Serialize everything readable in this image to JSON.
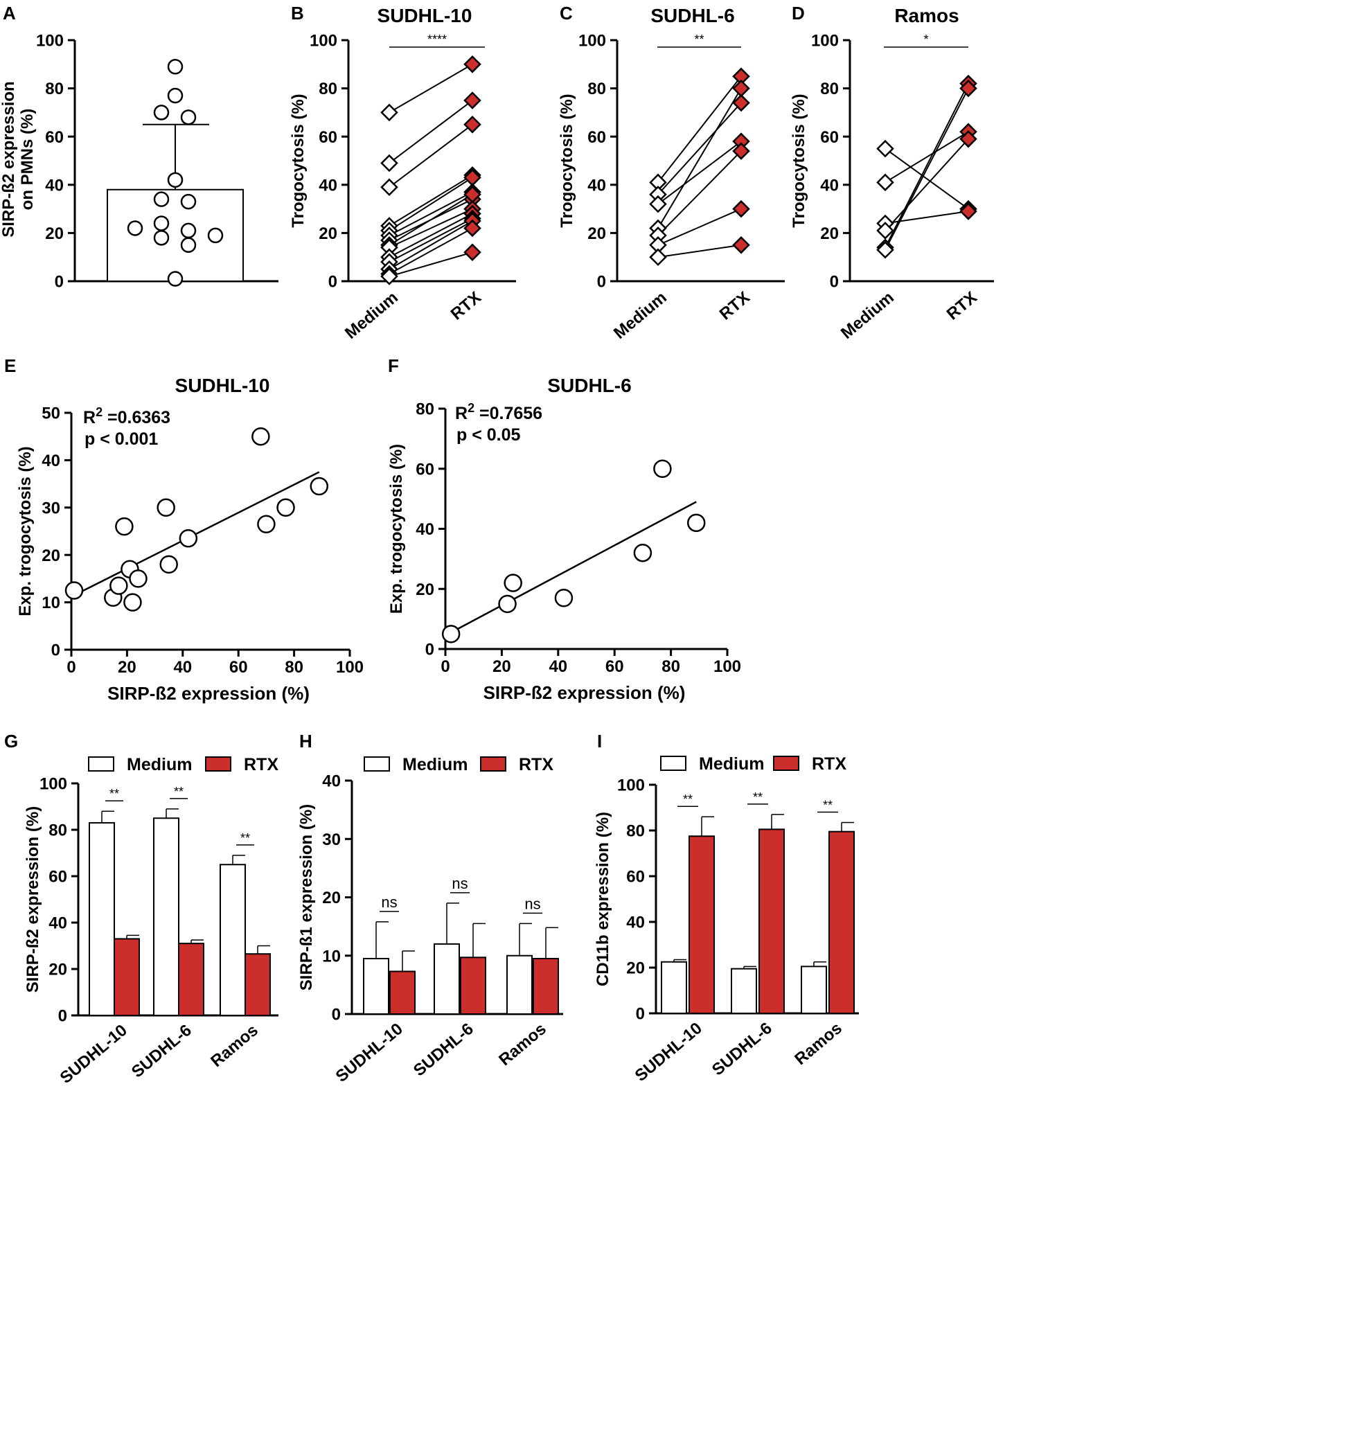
{
  "colors": {
    "rtx": "#cc2e2b",
    "medium": "#ffffff",
    "axis": "#000000"
  },
  "chart_data": [
    {
      "id": "A",
      "panel_label": "A",
      "type": "bar",
      "title": "",
      "ylabel": "SIRP-ß2 expression on  PMNs (%)",
      "ylabel_lines": [
        "SIRP-ß2 expression",
        "on  PMNs (%)"
      ],
      "ylim": [
        0,
        100
      ],
      "yticks": [
        0,
        20,
        40,
        60,
        80,
        100
      ],
      "bar_value": 38,
      "error_upper": 65,
      "points": [
        89,
        77,
        70,
        68,
        42,
        34,
        33,
        24,
        22,
        21,
        19,
        18,
        15,
        1
      ]
    },
    {
      "id": "B",
      "panel_label": "B",
      "type": "paired",
      "title": "SUDHL-10",
      "ylabel": "Trogocytosis (%)",
      "ylim": [
        0,
        100
      ],
      "yticks": [
        0,
        20,
        40,
        60,
        80,
        100
      ],
      "categories": [
        "Medium",
        "RTX"
      ],
      "significance": "****",
      "pairs": [
        [
          70,
          90
        ],
        [
          49,
          75
        ],
        [
          39,
          65
        ],
        [
          23,
          44
        ],
        [
          21,
          43
        ],
        [
          19,
          37
        ],
        [
          17,
          34
        ],
        [
          15,
          36
        ],
        [
          14,
          30
        ],
        [
          10,
          28
        ],
        [
          8,
          26
        ],
        [
          5,
          25
        ],
        [
          3,
          22
        ],
        [
          2,
          12
        ]
      ]
    },
    {
      "id": "C",
      "panel_label": "C",
      "type": "paired",
      "title": "SUDHL-6",
      "ylabel": "Trogocytosis (%)",
      "ylim": [
        0,
        100
      ],
      "yticks": [
        0,
        20,
        40,
        60,
        80,
        100
      ],
      "categories": [
        "Medium",
        "RTX"
      ],
      "significance": "**",
      "pairs": [
        [
          41,
          85
        ],
        [
          36,
          74
        ],
        [
          32,
          58
        ],
        [
          22,
          80
        ],
        [
          19,
          54
        ],
        [
          15,
          30
        ],
        [
          10,
          15
        ]
      ]
    },
    {
      "id": "D",
      "panel_label": "D",
      "type": "paired",
      "title": "Ramos",
      "ylabel": "Trogocytosis (%)",
      "ylim": [
        0,
        100
      ],
      "yticks": [
        0,
        20,
        40,
        60,
        80,
        100
      ],
      "categories": [
        "Medium",
        "RTX"
      ],
      "significance": "*",
      "pairs": [
        [
          55,
          30
        ],
        [
          41,
          62
        ],
        [
          24,
          29
        ],
        [
          21,
          59
        ],
        [
          14,
          82
        ],
        [
          13,
          80
        ]
      ]
    },
    {
      "id": "E",
      "panel_label": "E",
      "type": "scatter",
      "title": "SUDHL-10",
      "xlabel": "SIRP-ß2 expression (%)",
      "ylabel": "Exp. trogocytosis (%)",
      "xlim": [
        0,
        100
      ],
      "ylim": [
        0,
        50
      ],
      "xticks": [
        0,
        20,
        40,
        60,
        80,
        100
      ],
      "yticks": [
        0,
        10,
        20,
        30,
        40,
        50
      ],
      "r2_prefix": "R",
      "r2_sup": "2",
      "r2_value": " =0.6363",
      "p_text": "p < 0.001",
      "points": [
        [
          1,
          12.5
        ],
        [
          15,
          11
        ],
        [
          17,
          13.5
        ],
        [
          19,
          26
        ],
        [
          21,
          17
        ],
        [
          22,
          10
        ],
        [
          24,
          15
        ],
        [
          34,
          30
        ],
        [
          35,
          18
        ],
        [
          42,
          23.5
        ],
        [
          68,
          45
        ],
        [
          70,
          26.5
        ],
        [
          77,
          30
        ],
        [
          89,
          34.5
        ]
      ],
      "fit": [
        [
          0,
          11.2
        ],
        [
          89,
          37.5
        ]
      ]
    },
    {
      "id": "F",
      "panel_label": "F",
      "type": "scatter",
      "title": "SUDHL-6",
      "xlabel": "SIRP-ß2 expression (%)",
      "ylabel": "Exp. trogocytosis (%)",
      "xlim": [
        0,
        100
      ],
      "ylim": [
        0,
        80
      ],
      "xticks": [
        0,
        20,
        40,
        60,
        80,
        100
      ],
      "yticks": [
        0,
        20,
        40,
        60,
        80
      ],
      "r2_prefix": "R",
      "r2_sup": "2",
      "r2_value": " =0.7656",
      "p_text": "p < 0.05",
      "points": [
        [
          2,
          5
        ],
        [
          22,
          15
        ],
        [
          24,
          22
        ],
        [
          42,
          17
        ],
        [
          70,
          32
        ],
        [
          77,
          60
        ],
        [
          89,
          42
        ]
      ],
      "fit": [
        [
          2,
          5.5
        ],
        [
          89,
          49
        ]
      ]
    },
    {
      "id": "G",
      "panel_label": "G",
      "type": "grouped_bar",
      "title": "",
      "ylabel": "SIRP-ß2 expression (%)",
      "ylim": [
        0,
        100
      ],
      "yticks": [
        0,
        20,
        40,
        60,
        80,
        100
      ],
      "categories": [
        "SUDHL-10",
        "SUDHL-6",
        "Ramos"
      ],
      "legend": [
        "Medium",
        "RTX"
      ],
      "significance": [
        "**",
        "**",
        "**"
      ],
      "series": [
        {
          "name": "Medium",
          "values": [
            83,
            85,
            65
          ],
          "errors": [
            5,
            4,
            4
          ]
        },
        {
          "name": "RTX",
          "values": [
            33,
            31,
            26.5
          ],
          "errors": [
            1.5,
            1.5,
            3.5
          ]
        }
      ]
    },
    {
      "id": "H",
      "panel_label": "H",
      "type": "grouped_bar",
      "title": "",
      "ylabel": "SIRP-ß1 expression (%)",
      "ylim": [
        0,
        40
      ],
      "yticks": [
        0,
        10,
        20,
        30,
        40
      ],
      "categories": [
        "SUDHL-10",
        "SUDHL-6",
        "Ramos"
      ],
      "legend": [
        "Medium",
        "RTX"
      ],
      "significance": [
        "ns",
        "ns",
        "ns"
      ],
      "series": [
        {
          "name": "Medium",
          "values": [
            9.5,
            12,
            10
          ],
          "errors": [
            6.3,
            7,
            5.5
          ]
        },
        {
          "name": "RTX",
          "values": [
            7.3,
            9.7,
            9.5
          ],
          "errors": [
            3.5,
            5.8,
            5.3
          ]
        }
      ]
    },
    {
      "id": "I",
      "panel_label": "I",
      "type": "grouped_bar",
      "title": "",
      "ylabel": "CD11b expression (%)",
      "ylim": [
        0,
        100
      ],
      "yticks": [
        0,
        20,
        40,
        60,
        80,
        100
      ],
      "categories": [
        "SUDHL-10",
        "SUDHL-6",
        "Ramos"
      ],
      "legend": [
        "Medium",
        "RTX"
      ],
      "significance": [
        "**",
        "**",
        "**"
      ],
      "series": [
        {
          "name": "Medium",
          "values": [
            22.5,
            19.5,
            20.5
          ],
          "errors": [
            1,
            1,
            2
          ]
        },
        {
          "name": "RTX",
          "values": [
            77.5,
            80.5,
            79.5
          ],
          "errors": [
            8.5,
            6.5,
            4
          ]
        }
      ]
    }
  ]
}
